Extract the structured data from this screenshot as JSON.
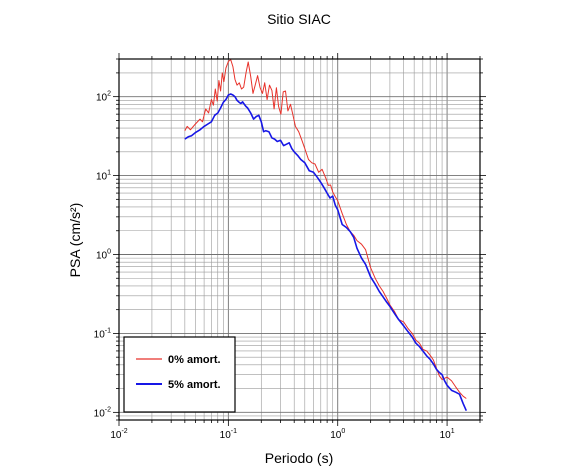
{
  "chart_data": {
    "type": "line",
    "title": "Sitio SIAC",
    "xlabel": "Periodo (s)",
    "ylabel": "PSA (cm/s²)",
    "xscale": "log",
    "yscale": "log",
    "xlim": [
      0.01,
      20
    ],
    "ylim": [
      0.008,
      300
    ],
    "grid": true,
    "legend_position": "bottom-left",
    "x_ticks": [
      {
        "base": "10",
        "exp": "-2",
        "value": 0.01
      },
      {
        "base": "10",
        "exp": "-1",
        "value": 0.1
      },
      {
        "base": "10",
        "exp": "0",
        "value": 1
      },
      {
        "base": "10",
        "exp": "1",
        "value": 10
      }
    ],
    "y_ticks": [
      {
        "base": "10",
        "exp": "-2",
        "value": 0.01
      },
      {
        "base": "10",
        "exp": "-1",
        "value": 0.1
      },
      {
        "base": "10",
        "exp": "0",
        "value": 1
      },
      {
        "base": "10",
        "exp": "1",
        "value": 10
      },
      {
        "base": "10",
        "exp": "2",
        "value": 100
      }
    ],
    "series": [
      {
        "name": "0% amort.",
        "color": "#e8322a",
        "x": [
          0.04,
          0.042,
          0.045,
          0.05,
          0.055,
          0.058,
          0.062,
          0.066,
          0.07,
          0.073,
          0.076,
          0.079,
          0.082,
          0.085,
          0.088,
          0.091,
          0.095,
          0.1,
          0.105,
          0.11,
          0.115,
          0.12,
          0.126,
          0.132,
          0.138,
          0.145,
          0.152,
          0.16,
          0.168,
          0.176,
          0.185,
          0.195,
          0.205,
          0.215,
          0.226,
          0.238,
          0.25,
          0.262,
          0.275,
          0.288,
          0.302,
          0.317,
          0.333,
          0.35,
          0.37,
          0.39,
          0.41,
          0.44,
          0.47,
          0.5,
          0.54,
          0.58,
          0.62,
          0.67,
          0.72,
          0.78,
          0.82,
          0.86,
          0.9,
          0.95,
          1.0,
          1.1,
          1.2,
          1.3,
          1.4,
          1.5,
          1.65,
          1.8,
          2.0,
          2.2,
          2.4,
          2.6,
          2.8,
          3.0,
          3.3,
          3.6,
          4.0,
          4.4,
          4.8,
          5.2,
          5.6,
          6.0,
          6.5,
          7.0,
          7.5,
          8.0,
          8.5,
          9.0,
          10.0,
          11.0,
          12.0,
          13.0,
          14.0,
          15.0
        ],
        "y": [
          37,
          42,
          38,
          45,
          52,
          48,
          70,
          62,
          92,
          78,
          125,
          88,
          160,
          118,
          200,
          155,
          230,
          280,
          295,
          240,
          165,
          140,
          150,
          125,
          132,
          200,
          275,
          180,
          110,
          140,
          185,
          130,
          110,
          150,
          92,
          140,
          120,
          70,
          130,
          75,
          60,
          115,
          118,
          66,
          80,
          58,
          42,
          36,
          28,
          22,
          16,
          14.5,
          14,
          11,
          12,
          9.2,
          7.5,
          7.6,
          6.2,
          5.4,
          4.8,
          3.3,
          2.4,
          1.95,
          1.75,
          1.5,
          1.35,
          1.15,
          0.68,
          0.5,
          0.4,
          0.34,
          0.28,
          0.23,
          0.19,
          0.15,
          0.14,
          0.115,
          0.1,
          0.082,
          0.075,
          0.063,
          0.06,
          0.053,
          0.046,
          0.036,
          0.029,
          0.026,
          0.028,
          0.025,
          0.021,
          0.018,
          0.016,
          0.015
        ]
      },
      {
        "name": "5% amort.",
        "color": "#1717e6",
        "x": [
          0.04,
          0.043,
          0.046,
          0.05,
          0.055,
          0.06,
          0.065,
          0.07,
          0.075,
          0.08,
          0.085,
          0.09,
          0.095,
          0.1,
          0.105,
          0.11,
          0.115,
          0.12,
          0.125,
          0.13,
          0.135,
          0.14,
          0.145,
          0.15,
          0.16,
          0.17,
          0.18,
          0.19,
          0.2,
          0.21,
          0.22,
          0.235,
          0.25,
          0.265,
          0.28,
          0.3,
          0.32,
          0.34,
          0.36,
          0.38,
          0.4,
          0.43,
          0.46,
          0.5,
          0.55,
          0.6,
          0.65,
          0.7,
          0.75,
          0.8,
          0.85,
          0.9,
          0.95,
          1.0,
          1.1,
          1.2,
          1.3,
          1.4,
          1.5,
          1.65,
          1.8,
          2.0,
          2.2,
          2.4,
          2.6,
          2.8,
          3.0,
          3.3,
          3.6,
          4.0,
          4.4,
          4.8,
          5.2,
          5.6,
          6.0,
          6.5,
          7.0,
          7.5,
          8.0,
          8.5,
          9.0,
          9.5,
          10.0,
          11.0,
          12.0,
          13.0,
          14.0,
          15.0
        ],
        "y": [
          29,
          31,
          32,
          35,
          38,
          42,
          45,
          48,
          58,
          62,
          72,
          85,
          92,
          105,
          108,
          105,
          100,
          90,
          85,
          82,
          86,
          80,
          75,
          72,
          62,
          52,
          56,
          58,
          48,
          36,
          37,
          36,
          30,
          29,
          27,
          28,
          24,
          25,
          26,
          22,
          20,
          18,
          16,
          14.5,
          11.5,
          11,
          9.5,
          8.2,
          7,
          6,
          5.2,
          5.5,
          4.2,
          3.7,
          2.4,
          2.2,
          1.95,
          1.65,
          1.2,
          0.9,
          0.75,
          0.52,
          0.42,
          0.34,
          0.29,
          0.25,
          0.22,
          0.18,
          0.15,
          0.125,
          0.105,
          0.09,
          0.075,
          0.068,
          0.06,
          0.052,
          0.047,
          0.041,
          0.035,
          0.032,
          0.03,
          0.025,
          0.022,
          0.019,
          0.018,
          0.017,
          0.013,
          0.0105
        ]
      }
    ]
  }
}
